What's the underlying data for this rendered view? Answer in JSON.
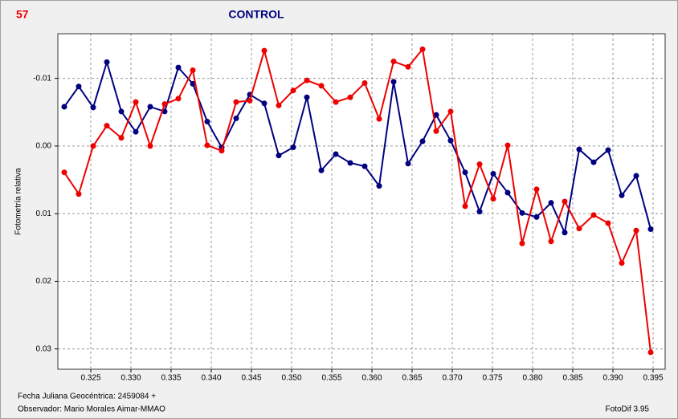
{
  "chart_data": {
    "type": "line",
    "star_label": "57",
    "title": "CONTROL",
    "ylabel": "Fotometría relativa",
    "footer_left": [
      "Fecha Juliana Geocéntrica: 2459084 +",
      "Observador: Mario Morales Aimar-MMAO"
    ],
    "footer_right": "FotoDif 3.95",
    "x": [
      0.3217,
      0.3235,
      0.3253,
      0.327,
      0.3288,
      0.3306,
      0.3324,
      0.3342,
      0.3359,
      0.3377,
      0.3395,
      0.3413,
      0.3431,
      0.3448,
      0.3466,
      0.3484,
      0.3502,
      0.3519,
      0.3537,
      0.3555,
      0.3573,
      0.3591,
      0.3609,
      0.3627,
      0.3645,
      0.3663,
      0.368,
      0.3698,
      0.3716,
      0.3734,
      0.3751,
      0.3769,
      0.3787,
      0.3805,
      0.3823,
      0.384,
      0.3858,
      0.3876,
      0.3894,
      0.3911,
      0.3929,
      0.3947
    ],
    "series": [
      {
        "color": "#000080",
        "values": [
          -0.0058,
          -0.0088,
          -0.0057,
          -0.0124,
          -0.0051,
          -0.0021,
          -0.0058,
          -0.0051,
          -0.0116,
          -0.0092,
          -0.0036,
          0.0002,
          -0.0041,
          -0.0076,
          -0.0063,
          0.0014,
          0.0002,
          -0.0072,
          0.0036,
          0.0012,
          0.0025,
          0.003,
          0.0059,
          -0.0095,
          0.0026,
          -0.0007,
          -0.0046,
          -0.0008,
          0.0039,
          0.0097,
          0.0041,
          0.0069,
          0.0099,
          0.0105,
          0.0084,
          0.0128,
          0.0005,
          0.0024,
          0.0006,
          0.0073,
          0.0044,
          0.0123
        ]
      },
      {
        "color": "#ee0000",
        "values": [
          0.0039,
          0.0071,
          0,
          -0.003,
          -0.0012,
          -0.0065,
          0,
          -0.0062,
          -0.007,
          -0.0112,
          -0.0001,
          0.0007,
          -0.0065,
          -0.0067,
          -0.0141,
          -0.006,
          -0.0082,
          -0.0097,
          -0.0089,
          -0.0065,
          -0.0072,
          -0.0093,
          -0.004,
          -0.0125,
          -0.0117,
          -0.0143,
          -0.0022,
          -0.0051,
          0.0089,
          0.0027,
          0.0078,
          -0.0001,
          0.0144,
          0.0064,
          0.0141,
          0.0082,
          0.0122,
          0.0102,
          0.0114,
          0.0173,
          0.0125,
          0.0305
        ]
      }
    ],
    "xlim": [
      0.3209,
      0.3965
    ],
    "xticks": [
      0.325,
      {
        "value": 0.33,
        "label": "0.330"
      },
      0.335,
      {
        "value": 0.34,
        "label": "0.340"
      },
      0.345,
      {
        "value": 0.35,
        "label": "0.350"
      },
      0.355,
      {
        "value": 0.36,
        "label": "0.360"
      },
      0.365,
      {
        "value": 0.37,
        "label": "0.370"
      },
      0.375,
      {
        "value": 0.38,
        "label": "0.380"
      },
      0.385,
      {
        "value": 0.39,
        "label": "0.390"
      },
      0.395
    ],
    "ylim": [
      0.033,
      -0.0166
    ],
    "yticks": [
      -0.01,
      {
        "value": 0,
        "label": "0.00"
      },
      0.01,
      0.02,
      0.03
    ],
    "grid": true
  }
}
